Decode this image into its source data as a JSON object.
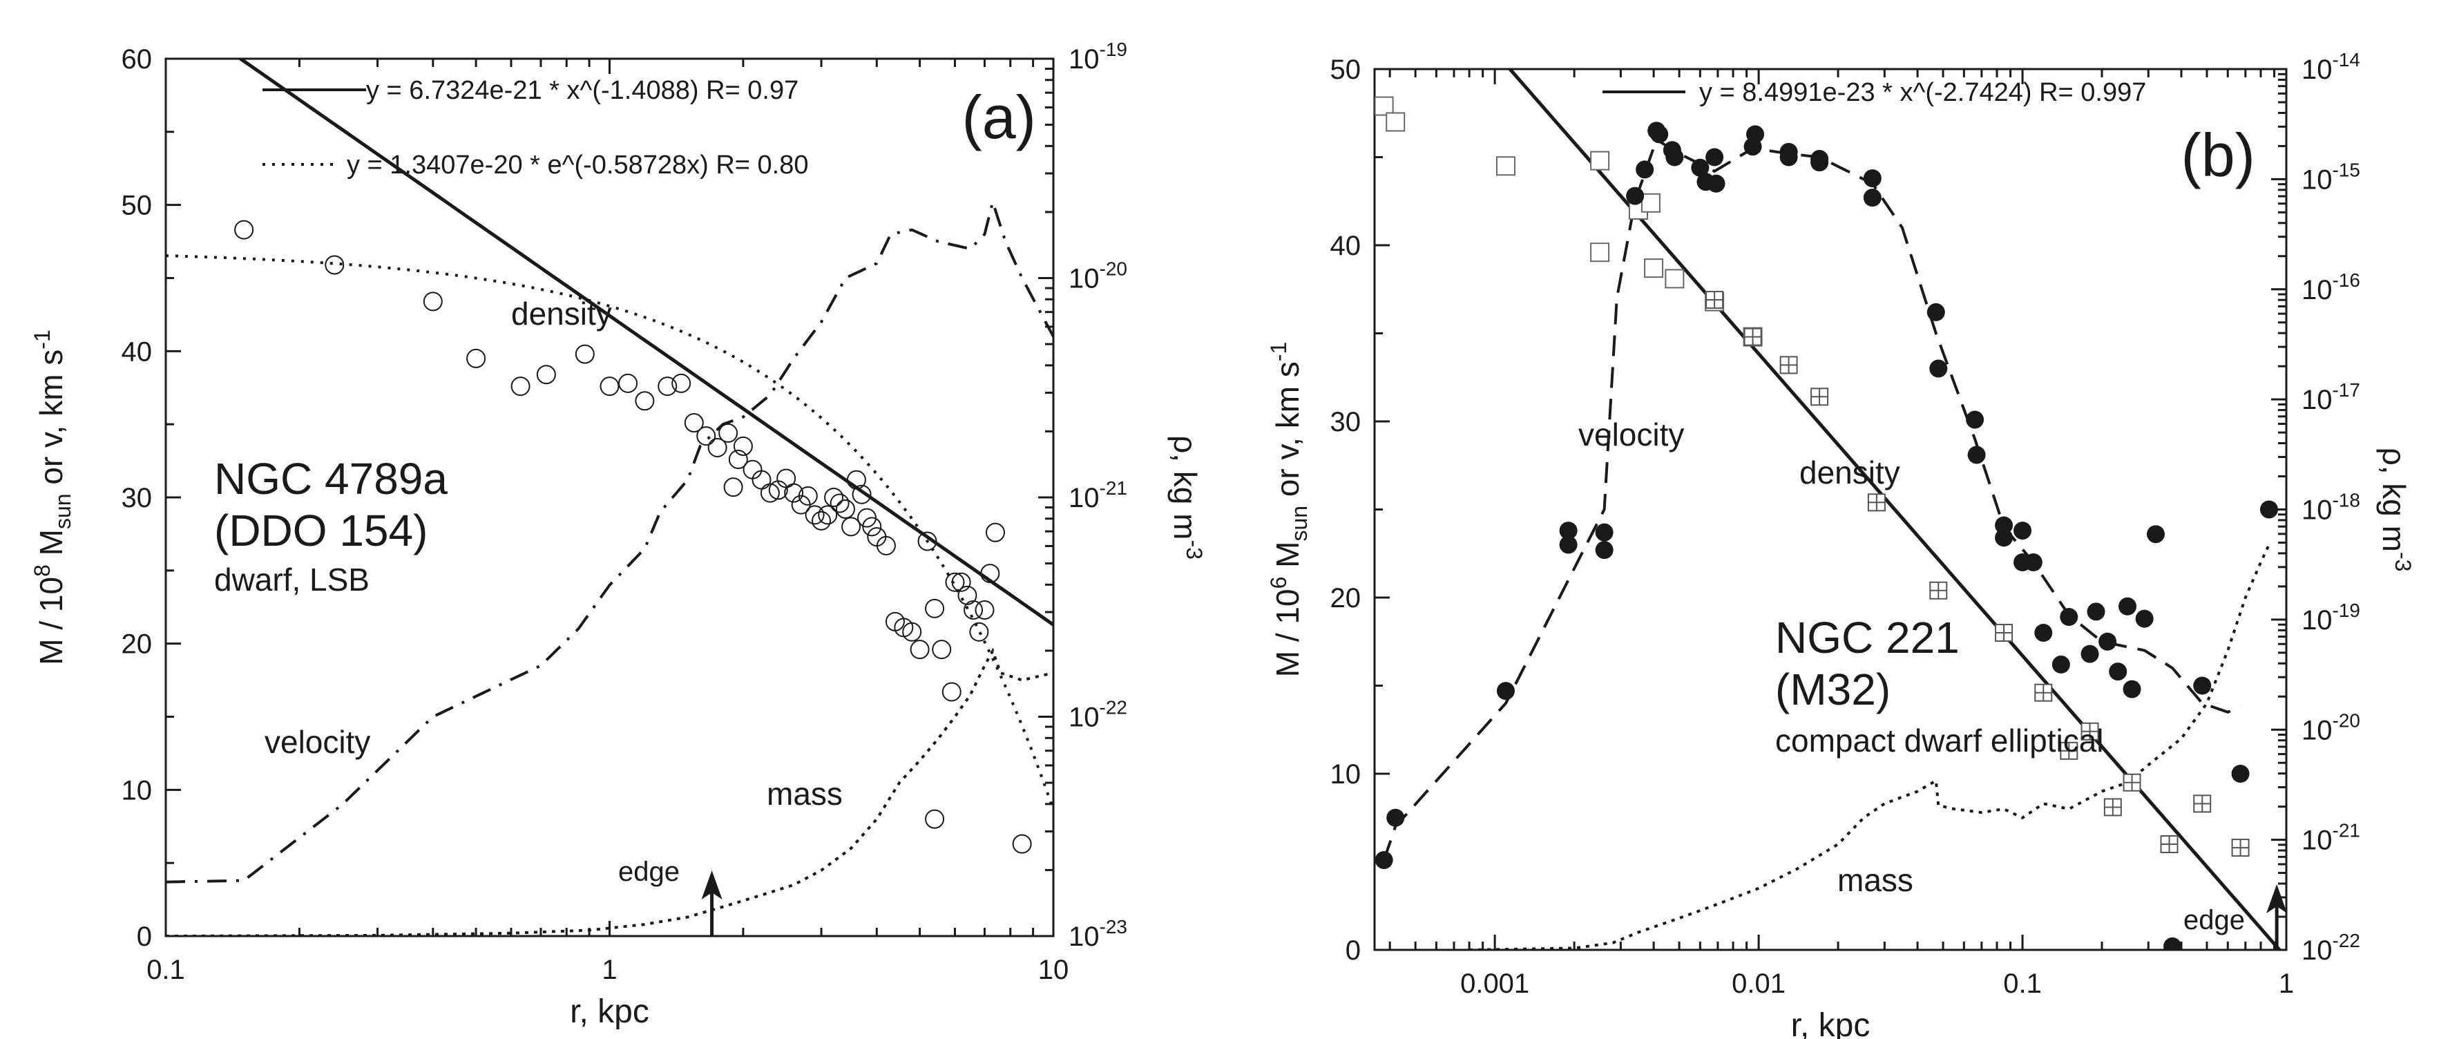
{
  "chart_data": [
    {
      "type": "scatter",
      "panel_label": "(a)",
      "xlabel": "r, kpc",
      "xscale": "log",
      "xlim": [
        0.1,
        10
      ],
      "xticks": [
        {
          "v": 0.1,
          "label": "0.1"
        },
        {
          "v": 1,
          "label": "1"
        },
        {
          "v": 10,
          "label": "10"
        }
      ],
      "ylim": [
        0,
        60
      ],
      "yticks": [
        0,
        10,
        20,
        30,
        40,
        50,
        60
      ],
      "ylabel_left": {
        "line1": "v, km s",
        "line1_sup": "-1",
        "line2": "or",
        "line3_pre": "M / 10",
        "line3_sup": "8",
        "line3_mid": " M",
        "line3_sub": "sun"
      },
      "yright": {
        "scale": "log",
        "lim": [
          1e-23,
          1e-19
        ],
        "label_pre": "ρ, kg m",
        "label_sup": "-3",
        "ticks": [
          {
            "v": 1e-19,
            "base": "10",
            "exp": "-19"
          },
          {
            "v": 1e-20,
            "base": "10",
            "exp": "-20"
          },
          {
            "v": 1e-21,
            "base": "10",
            "exp": "-21"
          },
          {
            "v": 1e-22,
            "base": "10",
            "exp": "-22"
          },
          {
            "v": 1e-23,
            "base": "10",
            "exp": "-23"
          }
        ]
      },
      "legend": [
        {
          "style": "solid",
          "text": "y = 6.7324e-21 * x^(-1.4088)    R= 0.97"
        },
        {
          "style": "dotted",
          "text": "y = 1.3407e-20 * e^(-0.58728x)    R= 0.80"
        }
      ],
      "annotations": {
        "title": "NGC 4789a",
        "subtitle": "(DDO 154)",
        "desc": "dwarf, LSB",
        "density": "density",
        "velocity": "velocity",
        "mass": "mass",
        "edge": "edge"
      },
      "edge_r": 1.7,
      "density_power_fit": {
        "a": 6.7324e-21,
        "b": -1.4088
      },
      "density_exp_fit": {
        "a": 1.3407e-20,
        "b": -0.58728
      },
      "density_points": [
        [
          0.15,
          48.3
        ],
        [
          0.24,
          45.9
        ],
        [
          0.4,
          43.4
        ],
        [
          0.5,
          39.5
        ],
        [
          0.63,
          37.6
        ],
        [
          0.72,
          38.4
        ],
        [
          0.88,
          39.8
        ],
        [
          1.0,
          37.6
        ],
        [
          1.1,
          37.8
        ],
        [
          1.2,
          36.6
        ],
        [
          1.35,
          37.6
        ],
        [
          1.45,
          37.8
        ],
        [
          1.55,
          35.1
        ],
        [
          1.65,
          34.2
        ],
        [
          1.75,
          33.4
        ],
        [
          1.85,
          34.4
        ],
        [
          1.9,
          30.7
        ],
        [
          1.95,
          32.6
        ],
        [
          2.0,
          33.5
        ],
        [
          2.1,
          31.9
        ],
        [
          2.2,
          31.2
        ],
        [
          2.3,
          30.3
        ],
        [
          2.4,
          30.5
        ],
        [
          2.5,
          31.3
        ],
        [
          2.6,
          30.3
        ],
        [
          2.7,
          29.5
        ],
        [
          2.8,
          30.1
        ],
        [
          2.9,
          28.8
        ],
        [
          3.0,
          28.4
        ],
        [
          3.1,
          28.8
        ],
        [
          3.2,
          30.0
        ],
        [
          3.3,
          29.6
        ],
        [
          3.4,
          29.2
        ],
        [
          3.5,
          28.0
        ],
        [
          3.6,
          31.2
        ],
        [
          3.7,
          30.2
        ],
        [
          3.8,
          28.6
        ],
        [
          3.9,
          28.0
        ],
        [
          4.0,
          27.3
        ],
        [
          4.2,
          26.7
        ],
        [
          4.4,
          21.5
        ],
        [
          4.6,
          21.1
        ],
        [
          4.8,
          20.8
        ],
        [
          5.0,
          19.6
        ],
        [
          5.2,
          27.0
        ],
        [
          5.4,
          22.4
        ],
        [
          5.6,
          19.6
        ],
        [
          5.9,
          16.7
        ],
        [
          6.0,
          24.2
        ],
        [
          6.2,
          24.2
        ],
        [
          6.4,
          23.3
        ],
        [
          6.6,
          22.3
        ],
        [
          6.8,
          20.8
        ],
        [
          7.0,
          22.3
        ],
        [
          7.2,
          24.8
        ],
        [
          7.4,
          27.6
        ],
        [
          5.4,
          8.0
        ],
        [
          8.5,
          6.3
        ]
      ],
      "velocity_curve": [
        [
          0.1,
          3.7
        ],
        [
          0.15,
          3.8
        ],
        [
          0.25,
          9.0
        ],
        [
          0.4,
          15.0
        ],
        [
          0.55,
          17.0
        ],
        [
          0.7,
          18.5
        ],
        [
          0.85,
          21.0
        ],
        [
          1.0,
          24.0
        ],
        [
          1.2,
          26.5
        ],
        [
          1.3,
          29.0
        ],
        [
          1.5,
          31.2
        ],
        [
          1.6,
          33.5
        ],
        [
          1.8,
          35.0
        ],
        [
          2.0,
          35.5
        ],
        [
          2.3,
          37.0
        ],
        [
          2.6,
          39.5
        ],
        [
          3.0,
          42.0
        ],
        [
          3.4,
          45.0
        ],
        [
          4.0,
          46.0
        ],
        [
          4.3,
          48.0
        ],
        [
          4.8,
          48.3
        ],
        [
          5.5,
          47.5
        ],
        [
          6.5,
          47.0
        ],
        [
          7.0,
          48.0
        ],
        [
          7.3,
          50.2
        ],
        [
          7.8,
          47.5
        ],
        [
          8.5,
          45.0
        ],
        [
          10,
          41.0
        ]
      ],
      "mass_curve": [
        [
          0.1,
          0.0
        ],
        [
          0.3,
          0.05
        ],
        [
          0.6,
          0.2
        ],
        [
          0.9,
          0.4
        ],
        [
          1.2,
          0.8
        ],
        [
          1.5,
          1.3
        ],
        [
          1.8,
          2.0
        ],
        [
          2.2,
          2.8
        ],
        [
          2.6,
          3.5
        ],
        [
          3.0,
          4.5
        ],
        [
          3.5,
          6.0
        ],
        [
          4.0,
          8.0
        ],
        [
          4.5,
          10.5
        ],
        [
          5.0,
          12.0
        ],
        [
          5.5,
          13.5
        ],
        [
          6.0,
          15.0
        ],
        [
          6.5,
          16.5
        ],
        [
          7.0,
          18.5
        ],
        [
          7.3,
          19.5
        ],
        [
          7.6,
          18.0
        ],
        [
          8.5,
          17.5
        ],
        [
          10,
          18.0
        ]
      ]
    },
    {
      "type": "scatter",
      "panel_label": "(b)",
      "xlabel": "r, kpc",
      "xscale": "log",
      "xlim": [
        0.00035,
        1
      ],
      "xticks": [
        {
          "v": 0.001,
          "label": "0.001"
        },
        {
          "v": 0.01,
          "label": "0.01"
        },
        {
          "v": 0.1,
          "label": "0.1"
        },
        {
          "v": 1,
          "label": "1"
        }
      ],
      "ylim": [
        0,
        50
      ],
      "yticks": [
        0,
        10,
        20,
        30,
        40,
        50
      ],
      "ylabel_left": {
        "line1": "v, km s",
        "line1_sup": "-1",
        "line2": "or",
        "line3_pre": "M / 10",
        "line3_sup": "6",
        "line3_mid": " M",
        "line3_sub": "sun"
      },
      "yright": {
        "scale": "log",
        "lim": [
          1e-22,
          1e-14
        ],
        "label_pre": "ρ, kg m",
        "label_sup": "-3",
        "ticks": [
          {
            "v": 1e-14,
            "base": "10",
            "exp": "-14"
          },
          {
            "v": 1e-15,
            "base": "10",
            "exp": "-15"
          },
          {
            "v": 1e-16,
            "base": "10",
            "exp": "-16"
          },
          {
            "v": 1e-17,
            "base": "10",
            "exp": "-17"
          },
          {
            "v": 1e-18,
            "base": "10",
            "exp": "-18"
          },
          {
            "v": 1e-19,
            "base": "10",
            "exp": "-19"
          },
          {
            "v": 1e-20,
            "base": "10",
            "exp": "-20"
          },
          {
            "v": 1e-21,
            "base": "10",
            "exp": "-21"
          },
          {
            "v": 1e-22,
            "base": "10",
            "exp": "-22"
          }
        ]
      },
      "legend": [
        {
          "style": "solid",
          "text": "y = 8.4991e-23 * x^(-2.7424)    R= 0.997"
        }
      ],
      "annotations": {
        "title": "NGC 221",
        "subtitle": "(M32)",
        "desc": "compact dwarf elliptical",
        "density": "density",
        "velocity": "velocity",
        "mass": "mass",
        "edge": "edge"
      },
      "edge_r": 0.92,
      "density_power_fit": {
        "a": 8.4991e-23,
        "b": -2.7424
      },
      "velocity_points": [
        [
          0.00038,
          5.1
        ],
        [
          0.00042,
          7.5
        ],
        [
          0.0011,
          14.7
        ],
        [
          0.0019,
          23.0
        ],
        [
          0.0019,
          23.8
        ],
        [
          0.0026,
          23.7
        ],
        [
          0.0026,
          22.7
        ],
        [
          0.0034,
          42.8
        ],
        [
          0.0037,
          44.3
        ],
        [
          0.0041,
          46.5
        ],
        [
          0.0042,
          46.3
        ],
        [
          0.0047,
          45.4
        ],
        [
          0.0048,
          45.0
        ],
        [
          0.006,
          44.4
        ],
        [
          0.0063,
          43.6
        ],
        [
          0.0068,
          45.0
        ],
        [
          0.0069,
          43.5
        ],
        [
          0.0095,
          45.6
        ],
        [
          0.0097,
          46.3
        ],
        [
          0.013,
          45.3
        ],
        [
          0.013,
          45.0
        ],
        [
          0.017,
          44.9
        ],
        [
          0.017,
          44.7
        ],
        [
          0.027,
          43.8
        ],
        [
          0.027,
          42.7
        ],
        [
          0.047,
          36.2
        ],
        [
          0.048,
          33.0
        ],
        [
          0.066,
          30.1
        ],
        [
          0.067,
          28.1
        ],
        [
          0.085,
          24.1
        ],
        [
          0.085,
          23.4
        ],
        [
          0.1,
          23.8
        ],
        [
          0.1,
          22.0
        ],
        [
          0.11,
          22.0
        ],
        [
          0.12,
          18.0
        ],
        [
          0.14,
          16.2
        ],
        [
          0.15,
          18.9
        ],
        [
          0.18,
          16.8
        ],
        [
          0.19,
          19.2
        ],
        [
          0.21,
          17.5
        ],
        [
          0.23,
          15.8
        ],
        [
          0.25,
          19.5
        ],
        [
          0.26,
          14.8
        ],
        [
          0.29,
          18.8
        ],
        [
          0.32,
          23.6
        ],
        [
          0.37,
          0.2
        ],
        [
          0.48,
          15.0
        ],
        [
          0.67,
          10.0
        ],
        [
          0.86,
          25.0
        ]
      ],
      "velocity_curve": [
        [
          0.00038,
          5.1
        ],
        [
          0.00042,
          7.0
        ],
        [
          0.0011,
          14.0
        ],
        [
          0.0019,
          21.0
        ],
        [
          0.0026,
          25.0
        ],
        [
          0.0029,
          37.0
        ],
        [
          0.0034,
          42.5
        ],
        [
          0.0041,
          46.0
        ],
        [
          0.005,
          45.2
        ],
        [
          0.0068,
          44.2
        ],
        [
          0.0095,
          45.5
        ],
        [
          0.013,
          45.2
        ],
        [
          0.017,
          45.0
        ],
        [
          0.027,
          43.5
        ],
        [
          0.035,
          41.0
        ],
        [
          0.047,
          35.0
        ],
        [
          0.066,
          29.0
        ],
        [
          0.085,
          24.0
        ],
        [
          0.11,
          22.0
        ],
        [
          0.15,
          19.0
        ],
        [
          0.2,
          17.5
        ],
        [
          0.29,
          17.0
        ],
        [
          0.37,
          16.0
        ],
        [
          0.48,
          14.0
        ],
        [
          0.6,
          13.5
        ],
        [
          0.67,
          13.8
        ]
      ],
      "density_open_points": [
        [
          0.00038,
          47.9
        ],
        [
          0.00042,
          47.0
        ],
        [
          0.0011,
          44.5
        ],
        [
          0.0025,
          44.8
        ],
        [
          0.0025,
          39.6
        ],
        [
          0.0035,
          42.0
        ],
        [
          0.0039,
          42.4
        ],
        [
          0.004,
          38.7
        ],
        [
          0.0048,
          38.1
        ],
        [
          0.0068,
          36.8
        ],
        [
          0.0095,
          34.8
        ]
      ],
      "density_grid_points": [
        [
          0.0068,
          36.9
        ],
        [
          0.0095,
          34.8
        ],
        [
          0.013,
          33.2
        ],
        [
          0.017,
          31.4
        ],
        [
          0.028,
          25.4
        ],
        [
          0.048,
          20.4
        ],
        [
          0.085,
          18.0
        ],
        [
          0.12,
          14.6
        ],
        [
          0.15,
          11.3
        ],
        [
          0.18,
          12.4
        ],
        [
          0.22,
          8.1
        ],
        [
          0.26,
          9.5
        ],
        [
          0.36,
          6.0
        ],
        [
          0.48,
          8.3
        ],
        [
          0.67,
          5.8
        ]
      ],
      "mass_curve": [
        [
          0.0008,
          0.0
        ],
        [
          0.002,
          0.1
        ],
        [
          0.0028,
          0.4
        ],
        [
          0.0035,
          1.0
        ],
        [
          0.005,
          1.8
        ],
        [
          0.007,
          2.6
        ],
        [
          0.01,
          3.5
        ],
        [
          0.014,
          4.6
        ],
        [
          0.02,
          6.0
        ],
        [
          0.025,
          7.5
        ],
        [
          0.03,
          8.3
        ],
        [
          0.04,
          9.0
        ],
        [
          0.047,
          9.6
        ],
        [
          0.048,
          8.2
        ],
        [
          0.055,
          8.0
        ],
        [
          0.07,
          7.8
        ],
        [
          0.085,
          8.0
        ],
        [
          0.1,
          7.5
        ],
        [
          0.12,
          8.3
        ],
        [
          0.15,
          8.0
        ],
        [
          0.2,
          9.0
        ],
        [
          0.25,
          9.5
        ],
        [
          0.3,
          10.5
        ],
        [
          0.4,
          12.0
        ],
        [
          0.5,
          14.0
        ],
        [
          0.6,
          17.0
        ],
        [
          0.7,
          20.0
        ],
        [
          0.8,
          22.0
        ],
        [
          0.86,
          23.0
        ]
      ]
    }
  ]
}
